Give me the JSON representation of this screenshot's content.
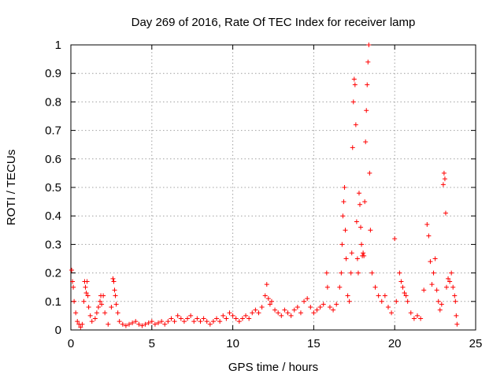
{
  "chart_data": {
    "type": "scatter",
    "title": "Day 269 of 2016, Rate Of TEC Index for receiver lamp",
    "xlabel": "GPS time / hours",
    "ylabel": "ROTI / TECUs",
    "xlim": [
      0,
      25
    ],
    "ylim": [
      0,
      1
    ],
    "x_ticks": [
      0,
      5,
      10,
      15,
      20,
      25
    ],
    "x_tick_labels": [
      "0",
      "5",
      "10",
      "15",
      "20",
      "25"
    ],
    "y_ticks": [
      0,
      0.1,
      0.2,
      0.3,
      0.4,
      0.5,
      0.6,
      0.7,
      0.8,
      0.9,
      1
    ],
    "y_tick_labels": [
      "0",
      "0.1",
      "0.2",
      "0.3",
      "0.4",
      "0.5",
      "0.6",
      "0.7",
      "0.8",
      "0.9",
      "1"
    ],
    "grid": true,
    "marker": "+",
    "color": "#ff0000",
    "series": [
      {
        "name": "ROTI",
        "points": [
          [
            0.05,
            0.21
          ],
          [
            0.1,
            0.17
          ],
          [
            0.15,
            0.15
          ],
          [
            0.2,
            0.1
          ],
          [
            0.3,
            0.06
          ],
          [
            0.4,
            0.03
          ],
          [
            0.5,
            0.02
          ],
          [
            0.6,
            0.01
          ],
          [
            0.7,
            0.02
          ],
          [
            0.8,
            0.1
          ],
          [
            0.85,
            0.17
          ],
          [
            0.9,
            0.15
          ],
          [
            0.95,
            0.13
          ],
          [
            1.0,
            0.17
          ],
          [
            1.05,
            0.12
          ],
          [
            1.1,
            0.08
          ],
          [
            1.2,
            0.05
          ],
          [
            1.3,
            0.03
          ],
          [
            1.5,
            0.04
          ],
          [
            1.6,
            0.06
          ],
          [
            1.7,
            0.08
          ],
          [
            1.8,
            0.1
          ],
          [
            1.85,
            0.12
          ],
          [
            1.9,
            0.09
          ],
          [
            2.0,
            0.12
          ],
          [
            2.1,
            0.06
          ],
          [
            2.3,
            0.02
          ],
          [
            2.5,
            0.08
          ],
          [
            2.6,
            0.18
          ],
          [
            2.65,
            0.17
          ],
          [
            2.7,
            0.14
          ],
          [
            2.75,
            0.12
          ],
          [
            2.8,
            0.09
          ],
          [
            2.9,
            0.06
          ],
          [
            3.0,
            0.03
          ],
          [
            3.2,
            0.02
          ],
          [
            3.4,
            0.015
          ],
          [
            3.6,
            0.02
          ],
          [
            3.8,
            0.025
          ],
          [
            4.0,
            0.03
          ],
          [
            4.2,
            0.02
          ],
          [
            4.4,
            0.015
          ],
          [
            4.6,
            0.02
          ],
          [
            4.8,
            0.025
          ],
          [
            5.0,
            0.03
          ],
          [
            5.2,
            0.02
          ],
          [
            5.4,
            0.025
          ],
          [
            5.6,
            0.03
          ],
          [
            5.8,
            0.02
          ],
          [
            6.0,
            0.03
          ],
          [
            6.2,
            0.04
          ],
          [
            6.4,
            0.03
          ],
          [
            6.6,
            0.05
          ],
          [
            6.8,
            0.04
          ],
          [
            7.0,
            0.03
          ],
          [
            7.2,
            0.04
          ],
          [
            7.4,
            0.05
          ],
          [
            7.6,
            0.03
          ],
          [
            7.8,
            0.04
          ],
          [
            8.0,
            0.03
          ],
          [
            8.2,
            0.04
          ],
          [
            8.4,
            0.03
          ],
          [
            8.6,
            0.02
          ],
          [
            8.8,
            0.03
          ],
          [
            9.0,
            0.04
          ],
          [
            9.2,
            0.03
          ],
          [
            9.4,
            0.05
          ],
          [
            9.6,
            0.04
          ],
          [
            9.8,
            0.06
          ],
          [
            10.0,
            0.05
          ],
          [
            10.2,
            0.04
          ],
          [
            10.4,
            0.03
          ],
          [
            10.6,
            0.04
          ],
          [
            10.8,
            0.05
          ],
          [
            11.0,
            0.04
          ],
          [
            11.2,
            0.06
          ],
          [
            11.4,
            0.07
          ],
          [
            11.6,
            0.06
          ],
          [
            11.8,
            0.08
          ],
          [
            12.0,
            0.12
          ],
          [
            12.1,
            0.16
          ],
          [
            12.2,
            0.11
          ],
          [
            12.3,
            0.09
          ],
          [
            12.4,
            0.1
          ],
          [
            12.6,
            0.07
          ],
          [
            12.8,
            0.06
          ],
          [
            13.0,
            0.05
          ],
          [
            13.2,
            0.07
          ],
          [
            13.4,
            0.06
          ],
          [
            13.6,
            0.05
          ],
          [
            13.8,
            0.07
          ],
          [
            14.0,
            0.08
          ],
          [
            14.2,
            0.06
          ],
          [
            14.4,
            0.1
          ],
          [
            14.6,
            0.11
          ],
          [
            14.8,
            0.08
          ],
          [
            15.0,
            0.06
          ],
          [
            15.2,
            0.07
          ],
          [
            15.4,
            0.08
          ],
          [
            15.6,
            0.09
          ],
          [
            15.8,
            0.2
          ],
          [
            15.85,
            0.15
          ],
          [
            16.0,
            0.08
          ],
          [
            16.2,
            0.07
          ],
          [
            16.4,
            0.09
          ],
          [
            16.6,
            0.15
          ],
          [
            16.7,
            0.2
          ],
          [
            16.75,
            0.3
          ],
          [
            16.8,
            0.4
          ],
          [
            16.85,
            0.45
          ],
          [
            16.9,
            0.5
          ],
          [
            16.95,
            0.35
          ],
          [
            17.0,
            0.25
          ],
          [
            17.1,
            0.12
          ],
          [
            17.2,
            0.1
          ],
          [
            17.3,
            0.2
          ],
          [
            17.35,
            0.27
          ],
          [
            17.4,
            0.64
          ],
          [
            17.45,
            0.8
          ],
          [
            17.5,
            0.88
          ],
          [
            17.55,
            0.86
          ],
          [
            17.6,
            0.72
          ],
          [
            17.65,
            0.38
          ],
          [
            17.7,
            0.25
          ],
          [
            17.75,
            0.2
          ],
          [
            17.8,
            0.48
          ],
          [
            17.85,
            0.44
          ],
          [
            17.9,
            0.36
          ],
          [
            17.95,
            0.3
          ],
          [
            18.0,
            0.26
          ],
          [
            18.05,
            0.27
          ],
          [
            18.1,
            0.26
          ],
          [
            18.15,
            0.45
          ],
          [
            18.2,
            0.66
          ],
          [
            18.25,
            0.77
          ],
          [
            18.3,
            0.86
          ],
          [
            18.35,
            0.94
          ],
          [
            18.4,
            1.0
          ],
          [
            18.45,
            0.55
          ],
          [
            18.5,
            0.35
          ],
          [
            18.6,
            0.2
          ],
          [
            18.8,
            0.15
          ],
          [
            19.0,
            0.12
          ],
          [
            19.2,
            0.1
          ],
          [
            19.4,
            0.12
          ],
          [
            19.6,
            0.08
          ],
          [
            19.8,
            0.06
          ],
          [
            20.0,
            0.32
          ],
          [
            20.1,
            0.1
          ],
          [
            20.3,
            0.2
          ],
          [
            20.4,
            0.17
          ],
          [
            20.5,
            0.15
          ],
          [
            20.6,
            0.13
          ],
          [
            20.7,
            0.12
          ],
          [
            20.8,
            0.1
          ],
          [
            21.0,
            0.06
          ],
          [
            21.2,
            0.04
          ],
          [
            21.4,
            0.05
          ],
          [
            21.6,
            0.04
          ],
          [
            21.8,
            0.14
          ],
          [
            22.0,
            0.37
          ],
          [
            22.1,
            0.33
          ],
          [
            22.2,
            0.24
          ],
          [
            22.3,
            0.16
          ],
          [
            22.4,
            0.2
          ],
          [
            22.5,
            0.25
          ],
          [
            22.6,
            0.14
          ],
          [
            22.7,
            0.1
          ],
          [
            22.8,
            0.07
          ],
          [
            22.9,
            0.09
          ],
          [
            23.0,
            0.51
          ],
          [
            23.05,
            0.55
          ],
          [
            23.1,
            0.53
          ],
          [
            23.15,
            0.41
          ],
          [
            23.2,
            0.15
          ],
          [
            23.3,
            0.18
          ],
          [
            23.4,
            0.17
          ],
          [
            23.5,
            0.2
          ],
          [
            23.6,
            0.15
          ],
          [
            23.7,
            0.12
          ],
          [
            23.75,
            0.1
          ],
          [
            23.8,
            0.05
          ],
          [
            23.85,
            0.02
          ]
        ]
      }
    ]
  }
}
